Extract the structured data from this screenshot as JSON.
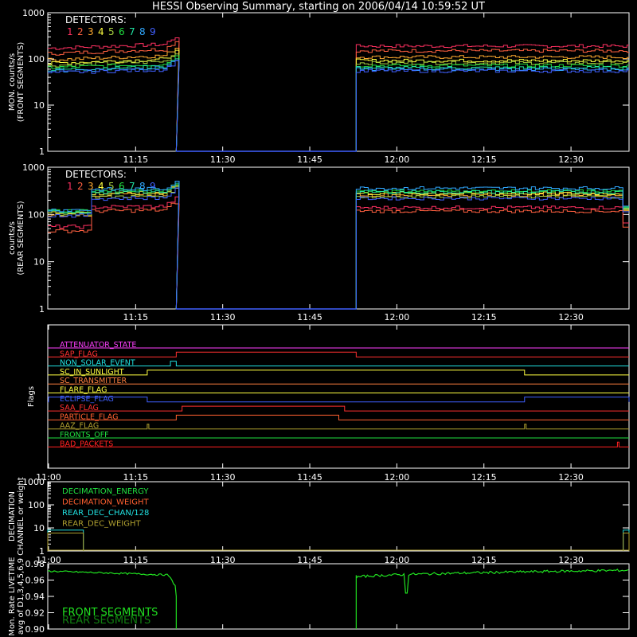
{
  "title": "HESSI Observing Summary, starting on 2006/04/14 10:59:52 UT",
  "colors": {
    "background": "#000000",
    "axes": "#ffffff",
    "detectors": [
      "#ff3060",
      "#ff6040",
      "#ffaa30",
      "#ffff40",
      "#a8d040",
      "#20e040",
      "#20e0a0",
      "#30a8ff",
      "#4060ff"
    ]
  },
  "chart_data": [
    {
      "type": "line",
      "name": "front_counts",
      "ylabel_lines": [
        "MON. counts/s",
        "(FRONT SEGMENTS)"
      ],
      "yscale": "log",
      "ylim": [
        1,
        1000
      ],
      "yticks": [
        "1",
        "10",
        "100",
        "1000"
      ],
      "xlim": [
        "10:59:52",
        "12:40"
      ],
      "xticks": [
        "11:15",
        "11:30",
        "11:45",
        "12:00",
        "12:15",
        "12:30"
      ],
      "legend_title": "DETECTORS:",
      "legend_labels": [
        "1",
        "2",
        "3",
        "4",
        "5",
        "6",
        "7",
        "8",
        "9"
      ],
      "gap": [
        "11:22",
        "11:53"
      ],
      "series": [
        {
          "name": "1",
          "start": 170,
          "end": 210,
          "after": 190
        },
        {
          "name": "2",
          "start": 130,
          "end": 165,
          "after": 150
        },
        {
          "name": "3",
          "start": 95,
          "end": 120,
          "after": 110
        },
        {
          "name": "4",
          "start": 80,
          "end": 100,
          "after": 92
        },
        {
          "name": "5",
          "start": 72,
          "end": 90,
          "after": 82
        },
        {
          "name": "6",
          "start": 65,
          "end": 78,
          "after": 72
        },
        {
          "name": "7",
          "start": 58,
          "end": 70,
          "after": 64
        },
        {
          "name": "8",
          "start": 55,
          "end": 66,
          "after": 60
        },
        {
          "name": "9",
          "start": 50,
          "end": 60,
          "after": 55
        }
      ]
    },
    {
      "type": "line",
      "name": "rear_counts",
      "ylabel_lines": [
        "counts/s",
        "(REAR SEGMENTS)"
      ],
      "yscale": "log",
      "ylim": [
        1,
        1000
      ],
      "yticks": [
        "1",
        "10",
        "100",
        "1000"
      ],
      "xlim": [
        "10:59:52",
        "12:40"
      ],
      "xticks": [
        "11:15",
        "11:30",
        "11:45",
        "12:00",
        "12:15",
        "12:30"
      ],
      "legend_title": "DETECTORS:",
      "legend_labels": [
        "1",
        "2",
        "3",
        "4",
        "5",
        "6",
        "7",
        "8",
        "9"
      ],
      "gap": [
        "11:22",
        "11:53"
      ],
      "series": [
        {
          "name": "1",
          "pre": 55,
          "start": 140,
          "end": 150,
          "after": 140
        },
        {
          "name": "2",
          "pre": 45,
          "start": 115,
          "end": 125,
          "after": 118
        },
        {
          "name": "3",
          "pre": 100,
          "start": 250,
          "end": 270,
          "after": 260
        },
        {
          "name": "4",
          "pre": 110,
          "start": 270,
          "end": 290,
          "after": 280
        },
        {
          "name": "5",
          "pre": 105,
          "start": 230,
          "end": 250,
          "after": 240
        },
        {
          "name": "6",
          "pre": 120,
          "start": 300,
          "end": 320,
          "after": 310
        },
        {
          "name": "7",
          "pre": 115,
          "start": 290,
          "end": 305,
          "after": 300
        },
        {
          "name": "8",
          "pre": 125,
          "start": 330,
          "end": 350,
          "after": 360
        },
        {
          "name": "9",
          "pre": 95,
          "start": 210,
          "end": 230,
          "after": 220
        }
      ]
    },
    {
      "type": "line",
      "name": "flags",
      "ylabel": "Flags",
      "xlim": [
        "10:59:52",
        "12:40"
      ],
      "xticks": [
        "11:00",
        "11:15",
        "11:30",
        "11:45",
        "12:00",
        "12:15",
        "12:30"
      ],
      "flags": [
        {
          "label": "ATTENUATOR_STATE",
          "color": "#ff40ff",
          "on": []
        },
        {
          "label": "SAP_FLAG",
          "color": "#ff3030",
          "on": [
            [
              "11:22",
              "11:53"
            ]
          ]
        },
        {
          "label": "NON_SOLAR_EVENT",
          "color": "#20e0e0",
          "on": [
            [
              "11:21",
              "11:22"
            ]
          ]
        },
        {
          "label": "SC_IN_SUNLIGHT",
          "color": "#ffff40",
          "on": [
            [
              "11:17",
              "12:22"
            ]
          ]
        },
        {
          "label": "SC_TRANSMITTER",
          "color": "#ff8040",
          "on": []
        },
        {
          "label": "FLARE_FLAG",
          "color": "#ffff40",
          "on": []
        },
        {
          "label": "ECLIPSE_FLAG",
          "color": "#4060ff",
          "on": [
            [
              "11:00",
              "11:17"
            ],
            [
              "12:22",
              "12:40"
            ]
          ]
        },
        {
          "label": "SAA_FLAG",
          "color": "#ff3030",
          "on": [
            [
              "11:23",
              "11:51"
            ]
          ]
        },
        {
          "label": "PARTICLE_FLAG",
          "color": "#ff6030",
          "on": [
            [
              "11:22",
              "11:50"
            ]
          ]
        },
        {
          "label": "AAZ_FLAG",
          "color": "#b0a030",
          "on": [
            [
              "11:17",
              "11:17"
            ],
            [
              "12:22",
              "12:22"
            ]
          ]
        },
        {
          "label": "FRONTS_OFF",
          "color": "#20e040",
          "on": []
        },
        {
          "label": "BAD_PACKETS",
          "color": "#ff2020",
          "on": [
            [
              "12:38",
              "12:38"
            ]
          ]
        }
      ]
    },
    {
      "type": "line",
      "name": "decimation",
      "ylabel_lines": [
        "DECIMATION",
        "CHANNEL or weight"
      ],
      "yscale": "log",
      "ylim": [
        1,
        1000
      ],
      "yticks": [
        "1",
        "10",
        "100",
        "1000"
      ],
      "xlim": [
        "10:59:52",
        "12:40"
      ],
      "xticks": [
        "11:00",
        "11:15",
        "11:30",
        "11:45",
        "12:00",
        "12:15",
        "12:30"
      ],
      "series": [
        {
          "name": "DECIMATION_ENERGY",
          "color": "#20e040"
        },
        {
          "name": "DECIMATION_WEIGHT",
          "color": "#ff6030"
        },
        {
          "name": "REAR_DEC_CHAN/128",
          "color": "#20e0e0"
        },
        {
          "name": "REAR_DEC_WEIGHT",
          "color": "#b0a030"
        }
      ],
      "steps": [
        {
          "color": "#20e0e0",
          "value": 8,
          "x": [
            [
              "10:59:52",
              "11:06"
            ],
            [
              "12:39",
              "12:40"
            ]
          ]
        },
        {
          "color": "#b0a030",
          "value": 6,
          "x": [
            [
              "10:59:52",
              "11:06"
            ],
            [
              "12:39",
              "12:40"
            ]
          ]
        }
      ]
    },
    {
      "type": "line",
      "name": "livetime",
      "ylabel_lines": [
        "Mon. Rate LIVETIME",
        "avg of D1,3,4,5,6,9"
      ],
      "ylim": [
        0.9,
        0.98
      ],
      "yticks": [
        "0.90",
        "0.92",
        "0.94",
        "0.96",
        "0.98"
      ],
      "xlim": [
        "10:59:52",
        "12:40"
      ],
      "series": [
        {
          "name": "FRONT SEGMENTS",
          "color": "#20e020"
        },
        {
          "name": "REAR SEGMENTS",
          "color": "#108010"
        }
      ],
      "values": {
        "before_start": 0.971,
        "before_end": 0.966,
        "after_start": 0.963,
        "after_end": 0.972
      }
    }
  ]
}
